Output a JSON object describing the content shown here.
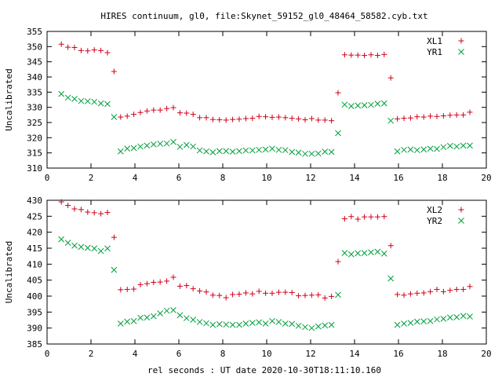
{
  "title": "HIRES continuum, gl0, file:Skynet_59152_gl0_48464_58582.cyb.txt",
  "xlabel": "rel seconds : UT date 2020-10-30T18:11:10.160",
  "colors": {
    "red": "#d0001b",
    "green": "#009e3c",
    "axis": "#000000"
  },
  "chart_data": [
    {
      "type": "scatter",
      "ylabel": "Uncalibrated",
      "ylim": [
        310,
        355
      ],
      "xlim": [
        0,
        20
      ],
      "yticks": [
        310,
        315,
        320,
        325,
        330,
        335,
        340,
        345,
        350,
        355
      ],
      "xticks": [
        0,
        2,
        4,
        6,
        8,
        10,
        12,
        14,
        16,
        18,
        20
      ],
      "legend_position": "top-right",
      "grid": false,
      "x": [
        0.65,
        0.95,
        1.25,
        1.55,
        1.85,
        2.15,
        2.45,
        2.75,
        3.05,
        3.35,
        3.65,
        3.95,
        4.25,
        4.55,
        4.85,
        5.15,
        5.45,
        5.75,
        6.05,
        6.35,
        6.65,
        6.95,
        7.25,
        7.55,
        7.85,
        8.15,
        8.45,
        8.75,
        9.05,
        9.35,
        9.65,
        9.95,
        10.25,
        10.55,
        10.85,
        11.15,
        11.45,
        11.75,
        12.05,
        12.35,
        12.65,
        12.95,
        13.25,
        13.55,
        13.85,
        14.15,
        14.45,
        14.75,
        15.05,
        15.35,
        15.65,
        15.95,
        16.25,
        16.55,
        16.85,
        17.15,
        17.45,
        17.75,
        18.05,
        18.35,
        18.65,
        18.95,
        19.25
      ],
      "series": [
        {
          "name": "XL1",
          "marker": "plus",
          "values": [
            350.8,
            349.8,
            349.7,
            348.7,
            348.6,
            348.9,
            348.7,
            348.0,
            341.8,
            326.8,
            327.1,
            327.7,
            328.3,
            328.8,
            329.1,
            329.1,
            329.6,
            329.9,
            328.2,
            328.1,
            327.7,
            326.6,
            326.6,
            326.0,
            325.9,
            325.8,
            326.0,
            326.1,
            326.3,
            326.4,
            327.0,
            326.9,
            326.7,
            326.8,
            326.6,
            326.4,
            326.2,
            325.9,
            326.3,
            325.8,
            325.8,
            325.6,
            334.8,
            347.3,
            347.2,
            347.2,
            347.1,
            347.3,
            347.1,
            347.4,
            339.7,
            326.2,
            326.4,
            326.5,
            326.9,
            326.8,
            327.1,
            327.0,
            327.2,
            327.4,
            327.5,
            327.5,
            328.4
          ]
        },
        {
          "name": "YR1",
          "marker": "cross",
          "values": [
            334.4,
            333.2,
            332.8,
            332.1,
            332.0,
            331.8,
            331.3,
            331.1,
            326.8,
            315.5,
            316.4,
            316.6,
            317.1,
            317.4,
            317.8,
            318.0,
            318.1,
            318.6,
            317.0,
            317.6,
            317.1,
            315.8,
            315.5,
            315.2,
            315.6,
            315.6,
            315.4,
            315.6,
            315.8,
            315.8,
            316.0,
            316.1,
            316.4,
            316.0,
            315.9,
            315.3,
            315.1,
            314.7,
            314.7,
            314.8,
            315.4,
            315.3,
            321.5,
            330.9,
            330.4,
            330.6,
            330.7,
            330.8,
            331.2,
            331.3,
            325.6,
            315.5,
            316.0,
            316.1,
            315.9,
            316.1,
            316.4,
            316.3,
            316.9,
            317.3,
            317.1,
            317.4,
            317.4
          ]
        }
      ]
    },
    {
      "type": "scatter",
      "ylabel": "Uncalibrated",
      "ylim": [
        385,
        430
      ],
      "xlim": [
        0,
        20
      ],
      "yticks": [
        385,
        390,
        395,
        400,
        405,
        410,
        415,
        420,
        425,
        430
      ],
      "xticks": [
        0,
        2,
        4,
        6,
        8,
        10,
        12,
        14,
        16,
        18,
        20
      ],
      "legend_position": "top-right",
      "grid": false,
      "x": [
        0.65,
        0.95,
        1.25,
        1.55,
        1.85,
        2.15,
        2.45,
        2.75,
        3.05,
        3.35,
        3.65,
        3.95,
        4.25,
        4.55,
        4.85,
        5.15,
        5.45,
        5.75,
        6.05,
        6.35,
        6.65,
        6.95,
        7.25,
        7.55,
        7.85,
        8.15,
        8.45,
        8.75,
        9.05,
        9.35,
        9.65,
        9.95,
        10.25,
        10.55,
        10.85,
        11.15,
        11.45,
        11.75,
        12.05,
        12.35,
        12.65,
        12.95,
        13.25,
        13.55,
        13.85,
        14.15,
        14.45,
        14.75,
        15.05,
        15.35,
        15.65,
        15.95,
        16.25,
        16.55,
        16.85,
        17.15,
        17.45,
        17.75,
        18.05,
        18.35,
        18.65,
        18.95,
        19.25
      ],
      "series": [
        {
          "name": "XL2",
          "marker": "plus",
          "values": [
            429.5,
            428.4,
            427.3,
            427.1,
            426.3,
            426.1,
            425.8,
            426.2,
            418.4,
            402.0,
            402.1,
            402.2,
            403.6,
            403.9,
            404.3,
            404.4,
            404.7,
            405.9,
            403.1,
            403.3,
            402.3,
            401.6,
            401.3,
            400.3,
            400.2,
            399.5,
            400.5,
            400.6,
            401.0,
            400.7,
            401.5,
            400.9,
            400.9,
            401.2,
            401.2,
            401.1,
            400.1,
            400.2,
            400.3,
            400.4,
            399.4,
            399.9,
            410.8,
            424.2,
            424.9,
            424.1,
            424.8,
            424.8,
            424.8,
            424.9,
            415.8,
            400.5,
            400.3,
            400.7,
            400.9,
            401.0,
            401.4,
            402.1,
            401.4,
            401.8,
            402.1,
            402.1,
            403.0
          ]
        },
        {
          "name": "YR2",
          "marker": "cross",
          "values": [
            417.8,
            416.7,
            415.8,
            415.4,
            415.1,
            414.9,
            414.1,
            414.9,
            408.2,
            391.4,
            392.0,
            392.2,
            393.2,
            393.3,
            393.7,
            394.6,
            395.4,
            395.6,
            394.0,
            393.1,
            392.6,
            391.9,
            391.5,
            391.0,
            391.2,
            391.1,
            391.0,
            391.0,
            391.4,
            391.6,
            391.8,
            391.4,
            392.2,
            391.9,
            391.4,
            391.3,
            390.7,
            390.3,
            390.0,
            390.5,
            390.8,
            391.0,
            400.4,
            413.5,
            413.1,
            413.4,
            413.5,
            413.7,
            413.9,
            413.3,
            405.5,
            391.0,
            391.4,
            391.6,
            392.0,
            392.1,
            392.2,
            392.7,
            392.9,
            393.3,
            393.4,
            393.8,
            393.6
          ]
        }
      ]
    }
  ]
}
